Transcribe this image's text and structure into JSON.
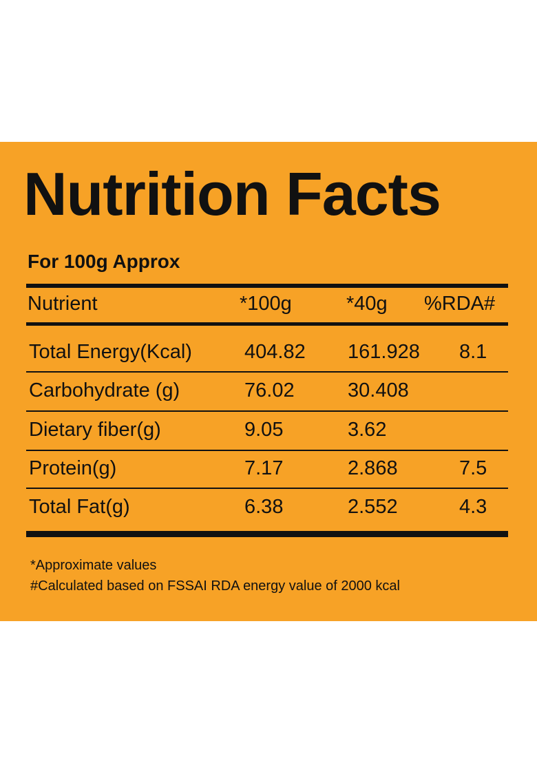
{
  "label": {
    "title": "Nutrition Facts",
    "serving": "For 100g Approx",
    "columns": {
      "nutrient": "Nutrient",
      "per_100g": "*100g",
      "per_40g": "*40g",
      "rda": "%RDA#"
    },
    "rows": [
      {
        "nutrient": "Total Energy(Kcal)",
        "per_100g": "404.82",
        "per_40g": "161.928",
        "rda": "8.1"
      },
      {
        "nutrient": "Carbohydrate (g)",
        "per_100g": "76.02",
        "per_40g": "30.408",
        "rda": ""
      },
      {
        "nutrient": "Dietary fiber(g)",
        "per_100g": "9.05",
        "per_40g": "3.62",
        "rda": ""
      },
      {
        "nutrient": "Protein(g)",
        "per_100g": "7.17",
        "per_40g": "2.868",
        "rda": "7.5"
      },
      {
        "nutrient": "Total Fat(g)",
        "per_100g": "6.38",
        "per_40g": "2.552",
        "rda": "4.3"
      }
    ],
    "footnotes": [
      "*Approximate values",
      "#Calculated based on FSSAI RDA energy value of 2000 kcal"
    ],
    "colors": {
      "background": "#f7a226",
      "ink": "#111111"
    }
  }
}
